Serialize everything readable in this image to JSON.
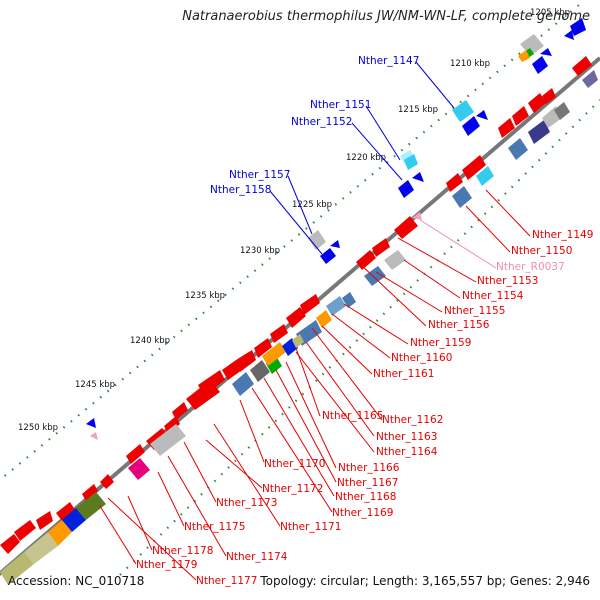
{
  "title": "Natranaerobius thermophilus JW/NM-WN-LF, complete genome",
  "footer": {
    "accession": "Accession: NC_010718",
    "topology": "Topology: circular; Length: 3,165,557 bp; Genes: 2,946"
  },
  "colors": {
    "backbone": "#777777",
    "forward_gene": "#ee0000",
    "reverse_gene": "#0000ee",
    "tick_dot": "#2e8b2e",
    "label_red": "#e60000",
    "label_blue": "#0000dd",
    "label_pink": "#f08cb4"
  },
  "kbp_ticks": [
    {
      "label": "1205 kbp"
    },
    {
      "label": "1210 kbp"
    },
    {
      "label": "1215 kbp"
    },
    {
      "label": "1220 kbp"
    },
    {
      "label": "1225 kbp"
    },
    {
      "label": "1230 kbp"
    },
    {
      "label": "1235 kbp"
    },
    {
      "label": "1240 kbp"
    },
    {
      "label": "1245 kbp"
    },
    {
      "label": "1250 kbp"
    }
  ],
  "gene_labels_reverse": [
    {
      "name": "Nther_1147"
    },
    {
      "name": "Nther_1151"
    },
    {
      "name": "Nther_1152"
    },
    {
      "name": "Nther_1157"
    },
    {
      "name": "Nther_1158"
    }
  ],
  "gene_labels_forward": [
    {
      "name": "Nther_1149"
    },
    {
      "name": "Nther_1150"
    },
    {
      "name": "Nther_R0037",
      "kind": "rna"
    },
    {
      "name": "Nther_1153"
    },
    {
      "name": "Nther_1154"
    },
    {
      "name": "Nther_1155"
    },
    {
      "name": "Nther_1156"
    },
    {
      "name": "Nther_1159"
    },
    {
      "name": "Nther_1160"
    },
    {
      "name": "Nther_1161"
    },
    {
      "name": "Nther_1165"
    },
    {
      "name": "Nther_1162"
    },
    {
      "name": "Nther_1163"
    },
    {
      "name": "Nther_1164"
    },
    {
      "name": "Nther_1170"
    },
    {
      "name": "Nther_1166"
    },
    {
      "name": "Nther_1167"
    },
    {
      "name": "Nther_1168"
    },
    {
      "name": "Nther_1172"
    },
    {
      "name": "Nther_1173"
    },
    {
      "name": "Nther_1169"
    },
    {
      "name": "Nther_1175"
    },
    {
      "name": "Nther_1171"
    },
    {
      "name": "Nther_1178"
    },
    {
      "name": "Nther_1174"
    },
    {
      "name": "Nther_1179"
    },
    {
      "name": "Nther_1177"
    }
  ],
  "cog_colors": [
    "#999999",
    "#bbbbbb",
    "#4a78b0",
    "#6fa0cc",
    "#ff9900",
    "#00aa00",
    "#5c7a1f",
    "#b8b870",
    "#e6007e",
    "#3a3a8a",
    "#33ccee",
    "#aaeeff"
  ]
}
